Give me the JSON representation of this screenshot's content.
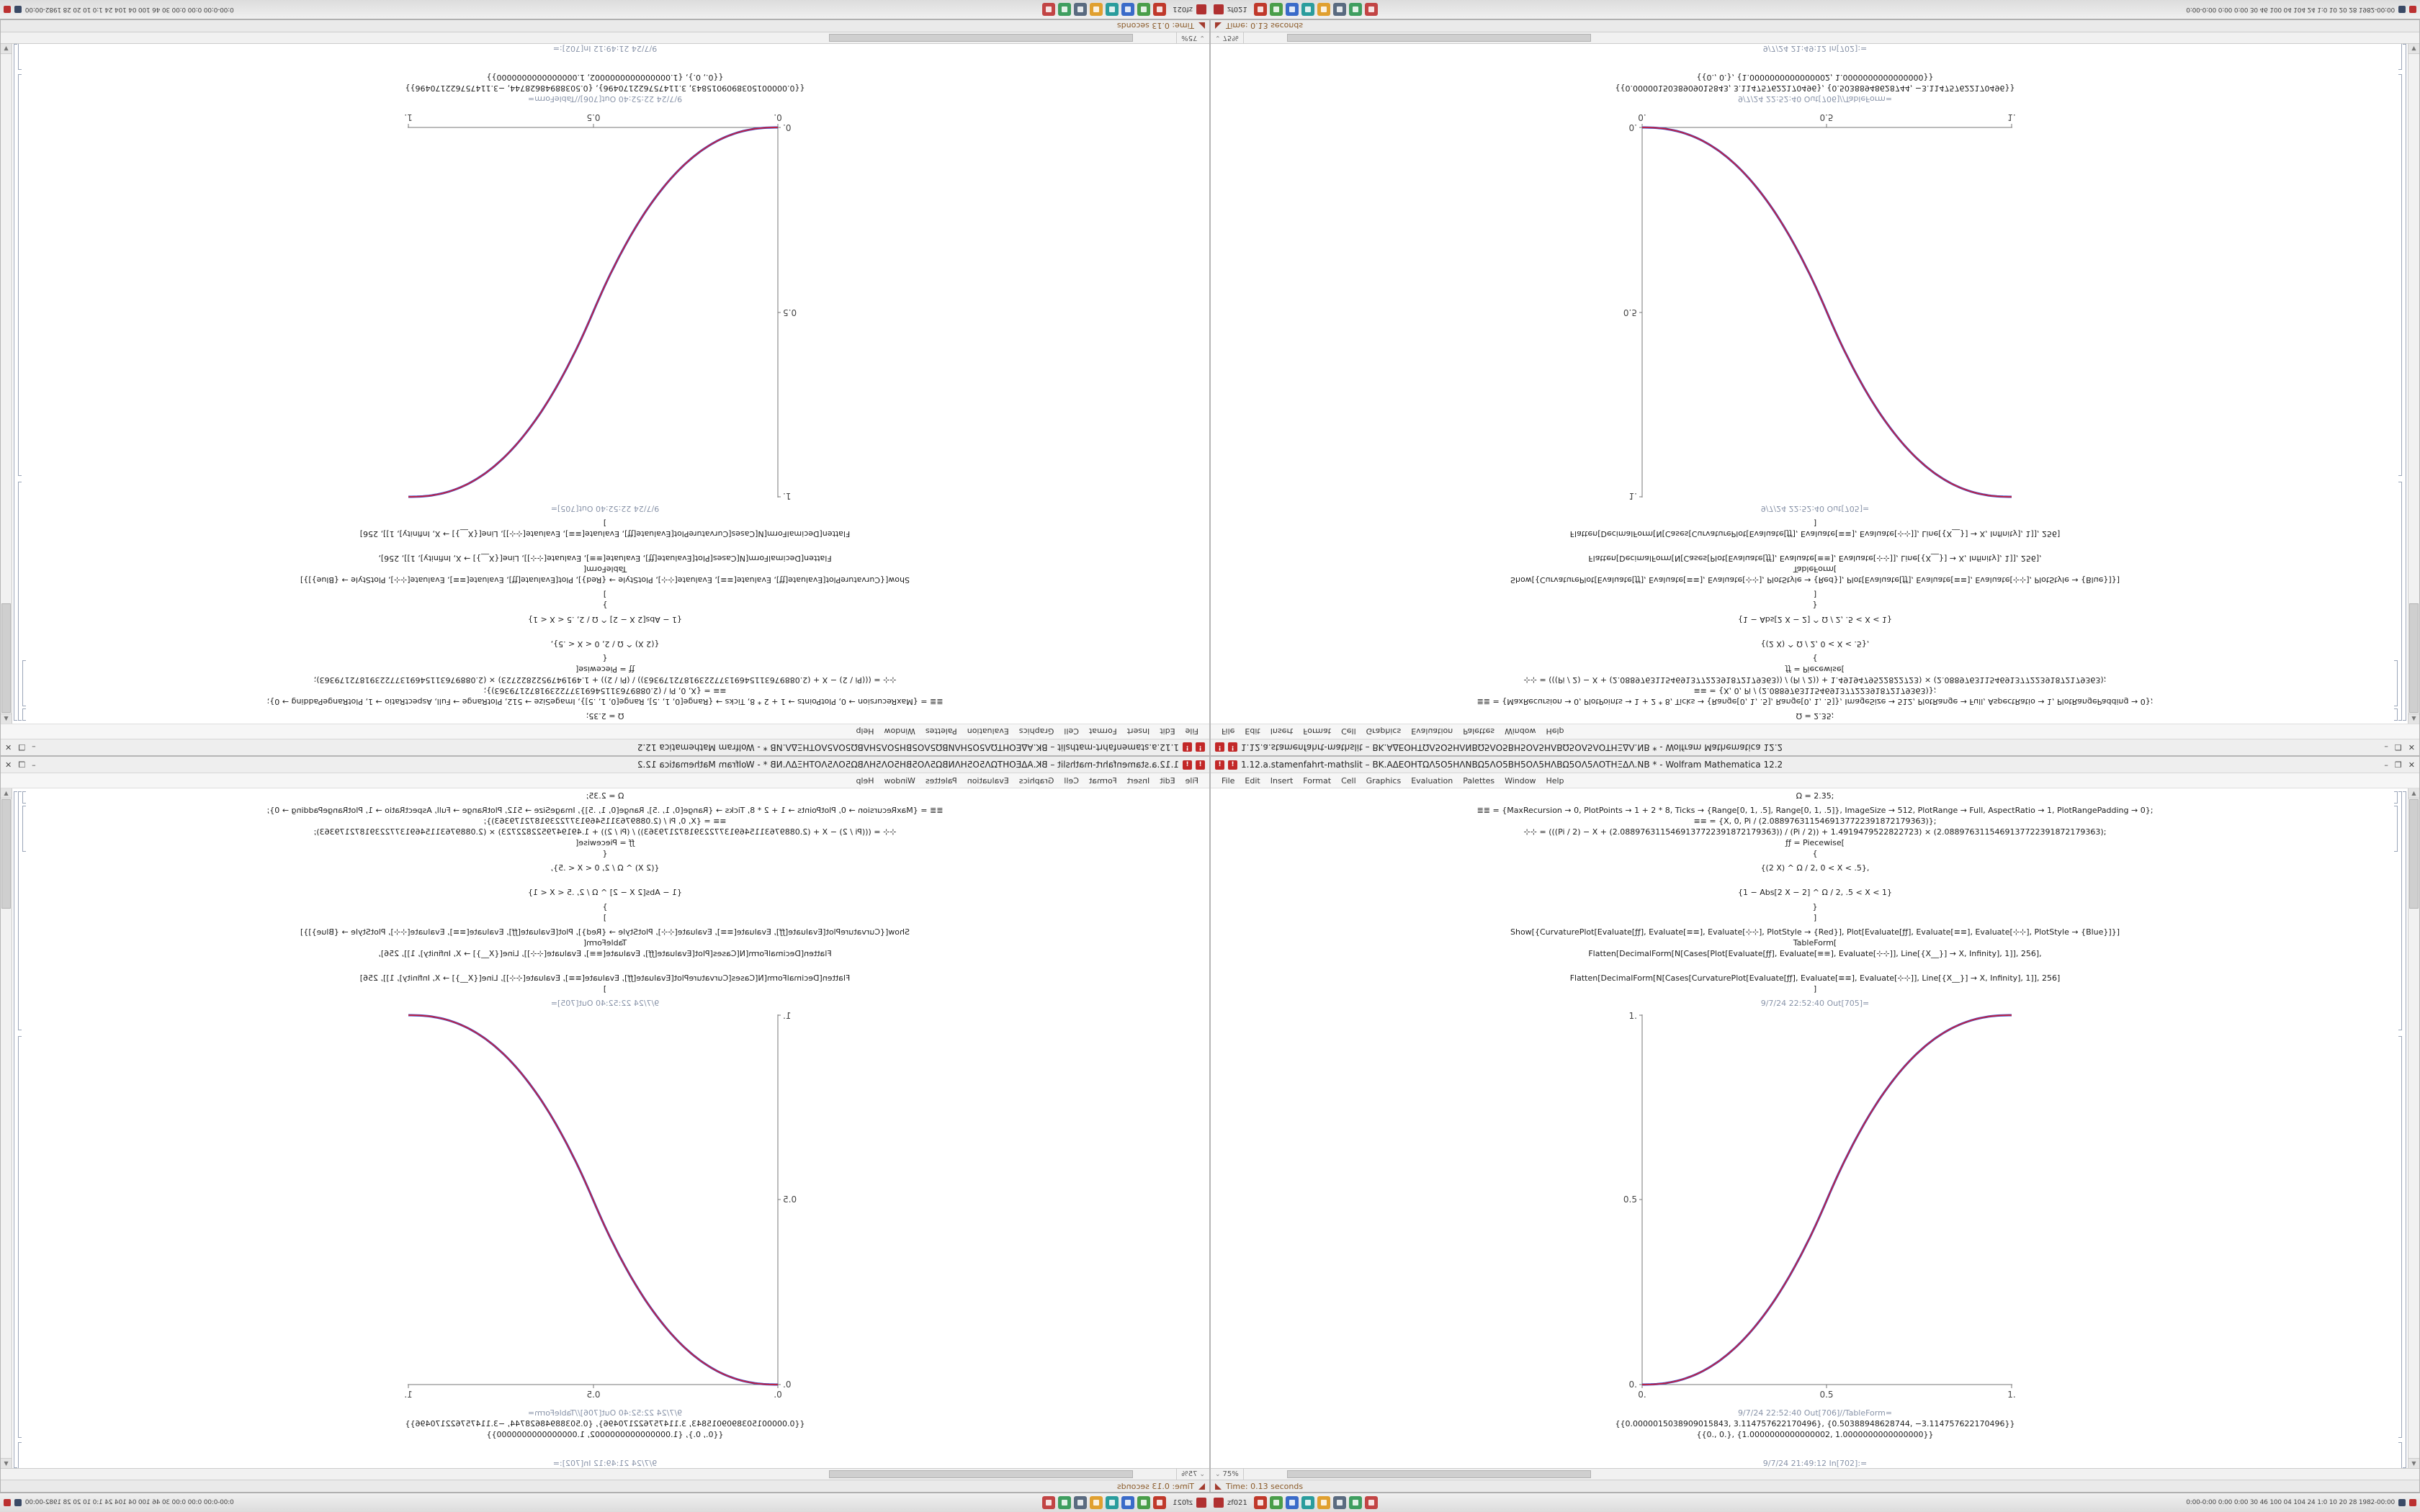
{
  "taskbar": {
    "left_label": "zf021",
    "system_text": "0:00-0:00 0:00 0:00 30 46 100 04 104 24 1:0 10 20 28 1982-00:00",
    "app_icons": [
      {
        "name": "app-icon-1",
        "color": "#c0392b"
      },
      {
        "name": "app-icon-2",
        "color": "#4a9e4a"
      },
      {
        "name": "app-icon-3",
        "color": "#3a6bc9"
      },
      {
        "name": "app-icon-4",
        "color": "#2a9d9d"
      },
      {
        "name": "app-icon-5",
        "color": "#e0a030"
      },
      {
        "name": "app-icon-6",
        "color": "#5a6b80"
      },
      {
        "name": "app-icon-7",
        "color": "#3f9e5f"
      },
      {
        "name": "app-icon-8",
        "color": "#c24545"
      }
    ]
  },
  "window": {
    "title": "1.12.a.stamenfahrt-mathslit – BK.ΑΔΕΟΗΤΩΛ5Ο5ΗΛΝΒΩ5ΛΟ5ΒΗ5ΟΛ5ΗΛΒΩ5ΟΛ5ΛΟΤΗΞΔΛ.NB * - Wolfram Mathematica 12.2",
    "minimize_glyph": "–",
    "maximize_glyph": "❐",
    "close_glyph": "✕",
    "menus": [
      "File",
      "Edit",
      "Insert",
      "Format",
      "Cell",
      "Graphics",
      "Evaluation",
      "Palettes",
      "Window",
      "Help"
    ],
    "zoom_level": "75%",
    "time_status": "Time: 0.13 seconds"
  },
  "notebook": {
    "cells": [
      {
        "type": "in",
        "gap": "s",
        "text": "Ω = 2.35;"
      },
      {
        "type": "in",
        "gap": "m",
        "text": "≣≣ = {MaxRecursion → 0, PlotPoints → 1 + 2 * 8, Ticks → {Range[0, 1, .5], Range[0, 1, .5]}, ImageSize → 512, PlotRange → Full, AspectRatio → 1, PlotRangePadding → 0};"
      },
      {
        "type": "in",
        "gap": "s",
        "text": "≡≡ = {X, 0, Pi / (2.0889763115469137722391872179363)};"
      },
      {
        "type": "in",
        "gap": "s",
        "text": "⊹⊹ = (((Pi / 2) − X + (2.0889763115469137722391872179363)) / (Pi / 2)) + 1.4919479522822723) × (2.0889763115469137722391872179363);"
      },
      {
        "type": "in",
        "gap": "s",
        "text": "ƒƒ = Piecewise["
      },
      {
        "type": "in",
        "gap": "s",
        "text": "{"
      },
      {
        "type": "in",
        "gap": "m",
        "text": "{(2 X) ^ Ω / 2, 0 < X < .5},"
      },
      {
        "type": "in",
        "gap": "l",
        "text": "{1 − Abs[2 X − 2] ^ Ω / 2, .5 < X < 1}"
      },
      {
        "type": "in",
        "gap": "m",
        "text": "}"
      },
      {
        "type": "in",
        "gap": "s",
        "text": "]"
      },
      {
        "type": "in",
        "gap": "m",
        "text": "Show[{CurvaturePlot[Evaluate[ƒƒ], Evaluate[≡≡], Evaluate[⊹⊹], PlotStyle → {Red}], Plot[Evaluate[ƒƒ], Evaluate[≡≡], Evaluate[⊹⊹], PlotStyle → {Blue}]}]"
      },
      {
        "type": "in",
        "gap": "s",
        "text": "TableForm["
      },
      {
        "type": "in",
        "gap": "s",
        "text": "Flatten[DecimalForm[N[Cases[Plot[Evaluate[ƒƒ], Evaluate[≡≡], Evaluate[⊹⊹]], Line[{X__}] → X, Infinity], 1]], 256],"
      },
      {
        "type": "in",
        "gap": "l",
        "text": "Flatten[DecimalForm[N[Cases[CurvaturePlot[Evaluate[ƒƒ], Evaluate[≡≡], Evaluate[⊹⊹]], Line[{X__}] → X, Infinity], 1]], 256]"
      },
      {
        "type": "in",
        "gap": "s",
        "text": "]"
      },
      {
        "type": "label",
        "gap": "m",
        "text": "9/7/24 22:52:40 Out[705]="
      },
      {
        "type": "plot",
        "gap": "s"
      },
      {
        "type": "label",
        "gap": "m",
        "text": "9/7/24 22:52:40 Out[706]//TableForm="
      },
      {
        "type": "out",
        "gap": "s",
        "text": "{{0.0000015038909015843, 3.114757622170496}, {0.50388948628744, −3.114757622170496}}"
      },
      {
        "type": "out",
        "gap": "s",
        "text": "{{0., 0.}, {1.0000000000000002, 1.0000000000000000}}"
      },
      {
        "type": "label",
        "gap": "xl",
        "text": "9/7/24 21:49:12 In[702]:="
      }
    ]
  },
  "chart_data": {
    "type": "line",
    "title": "",
    "xlabel": "",
    "ylabel": "",
    "omega": 2.35,
    "x": [
      0,
      0.1,
      0.2,
      0.3,
      0.4,
      0.5,
      0.6,
      0.7,
      0.8,
      0.9,
      1
    ],
    "series": [
      {
        "name": "CurvaturePlot (Red)",
        "color": "#cc2238",
        "values": [
          0,
          0.011,
          0.058,
          0.151,
          0.296,
          0.5,
          0.704,
          0.849,
          0.942,
          0.989,
          1
        ]
      },
      {
        "name": "Plot (Blue)",
        "color": "#3344cc",
        "values": [
          0,
          0.011,
          0.058,
          0.151,
          0.296,
          0.5,
          0.704,
          0.849,
          0.942,
          0.989,
          1
        ]
      }
    ],
    "xlim": [
      0,
      1
    ],
    "ylim": [
      0,
      1
    ],
    "x_tick_labels": [
      "0.",
      "0.5",
      "1."
    ],
    "y_tick_labels": [
      "0.",
      "0.5",
      "1."
    ],
    "grid": false,
    "legend": "none"
  }
}
